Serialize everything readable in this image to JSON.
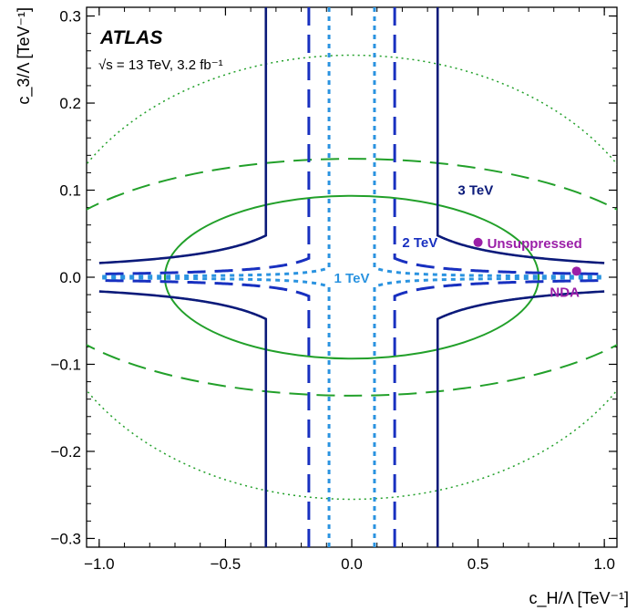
{
  "chart_data": {
    "type": "line",
    "title": "",
    "experiment_label": "ATLAS",
    "info_text": "√s = 13 TeV, 3.2 fb⁻¹",
    "xlabel": "c_H/Λ [TeV⁻¹]",
    "ylabel": "c_3/Λ [TeV⁻¹]",
    "xlim": [
      -1.05,
      1.05
    ],
    "ylim": [
      -0.31,
      0.31
    ],
    "x_ticks": [
      -1.0,
      -0.5,
      0.0,
      0.5,
      1.0
    ],
    "x_tick_labels": [
      "−1.0",
      "−0.5",
      "0.0",
      "0.5",
      "1.0"
    ],
    "y_ticks": [
      -0.3,
      -0.2,
      -0.1,
      0.0,
      0.1,
      0.2,
      0.3
    ],
    "y_tick_labels": [
      "−0.3",
      "−0.2",
      "−0.1",
      "0.0",
      "0.1",
      "0.2",
      "0.3"
    ],
    "grid": false,
    "contours": [
      {
        "label": "3 TeV",
        "color": "#0b1a7a",
        "style": "solid",
        "hyperbola_k": 0.0163,
        "x_cut": 0.34
      },
      {
        "label": "2 TeV",
        "color": "#1830c0",
        "style": "dashed",
        "hyperbola_k": 0.0037,
        "x_cut": 0.17
      },
      {
        "label": "1 TeV",
        "color": "#2a93e0",
        "style": "dotted",
        "hyperbola_k": 0.001,
        "x_cut": 0.09
      }
    ],
    "ellipses": [
      {
        "style": "solid",
        "color": "#22a02a",
        "semi_x": 0.74,
        "semi_y": 0.0935
      },
      {
        "style": "dashed",
        "color": "#22a02a",
        "semi_x": 1.28,
        "semi_y": 0.136
      },
      {
        "style": "dotted",
        "color": "#22a02a",
        "semi_x": 1.22,
        "semi_y": 0.255
      }
    ],
    "points": [
      {
        "label": "Unsuppressed",
        "x": 0.5,
        "y": 0.04,
        "color": "#9b1fa8"
      },
      {
        "label": "NDA",
        "x": 0.89,
        "y": 0.007,
        "color": "#9b1fa8"
      }
    ],
    "contour_labels": [
      {
        "text": "3 TeV",
        "x": 0.49,
        "y": 0.1,
        "color": "#0b1a7a"
      },
      {
        "text": "2 TeV",
        "x": 0.27,
        "y": 0.04,
        "color": "#1830c0"
      },
      {
        "text": "1 TeV",
        "x": 0.0,
        "y": -0.001,
        "color": "#2a93e0"
      }
    ]
  }
}
